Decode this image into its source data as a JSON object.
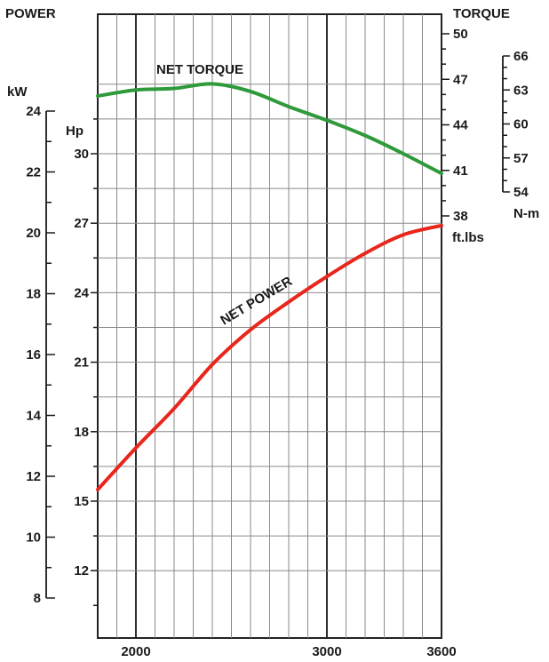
{
  "chart_data": {
    "type": "line",
    "titles": {
      "power": "POWER",
      "torque": "TORQUE",
      "kw_unit": "kW",
      "hp_unit": "Hp",
      "ftlbs_unit": "ft.lbs",
      "nm_unit": "N-m"
    },
    "x_axis": {
      "range": [
        1800,
        3600
      ],
      "ticks": [
        "2000",
        "3000",
        "3600"
      ],
      "tick_values": [
        2000,
        3000,
        3600
      ]
    },
    "kw_axis": {
      "range": [
        8,
        24
      ],
      "ticks": [
        "8",
        "10",
        "12",
        "14",
        "16",
        "18",
        "20",
        "22",
        "24"
      ],
      "tick_values": [
        8,
        10,
        12,
        14,
        16,
        18,
        20,
        22,
        24
      ]
    },
    "hp_axis": {
      "range": [
        9,
        33
      ],
      "ticks": [
        "12",
        "15",
        "18",
        "21",
        "24",
        "27",
        "30"
      ],
      "tick_values": [
        12,
        15,
        18,
        21,
        24,
        27,
        30
      ]
    },
    "ftlbs_axis": {
      "range": [
        38,
        50
      ],
      "ticks": [
        "38",
        "41",
        "44",
        "47",
        "50"
      ],
      "tick_values": [
        38,
        41,
        44,
        47,
        50
      ]
    },
    "nm_axis": {
      "range": [
        54,
        66
      ],
      "ticks": [
        "54",
        "57",
        "60",
        "63",
        "66"
      ],
      "tick_values": [
        54,
        57,
        60,
        63,
        66
      ]
    },
    "series": [
      {
        "name": "NET TORQUE",
        "unit": "ft.lbs",
        "color": "#2e9a3a",
        "points": [
          [
            1800,
            45.9
          ],
          [
            2000,
            46.3
          ],
          [
            2200,
            46.4
          ],
          [
            2400,
            46.7
          ],
          [
            2600,
            46.2
          ],
          [
            2800,
            45.2
          ],
          [
            3000,
            44.3
          ],
          [
            3200,
            43.3
          ],
          [
            3400,
            42.1
          ],
          [
            3600,
            40.8
          ]
        ]
      },
      {
        "name": "NET POWER",
        "unit": "Hp",
        "color": "#e8261c",
        "points": [
          [
            1800,
            15.5
          ],
          [
            2000,
            17.3
          ],
          [
            2200,
            19.0
          ],
          [
            2400,
            20.9
          ],
          [
            2600,
            22.4
          ],
          [
            2800,
            23.6
          ],
          [
            3000,
            24.7
          ],
          [
            3200,
            25.7
          ],
          [
            3400,
            26.5
          ],
          [
            3600,
            26.9
          ]
        ]
      }
    ],
    "grid": true
  }
}
